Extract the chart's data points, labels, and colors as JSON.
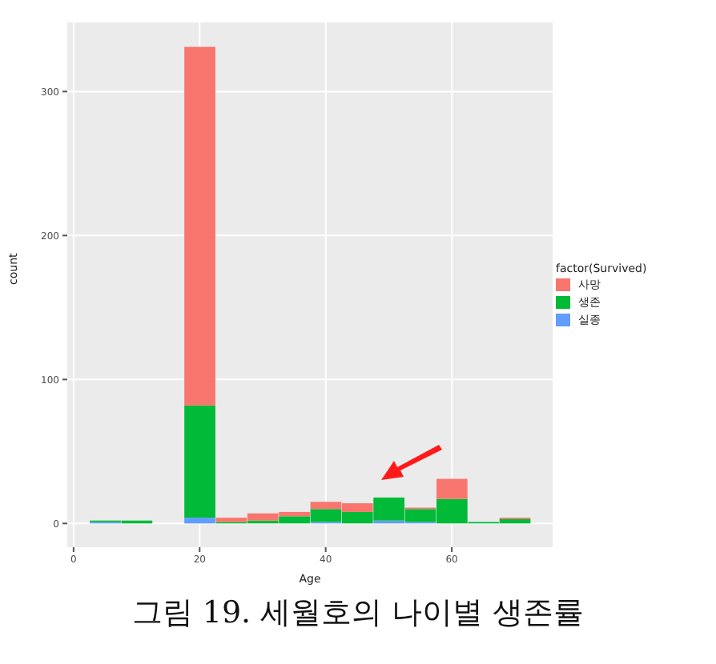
{
  "chart_data": {
    "type": "bar",
    "xlabel": "Age",
    "ylabel": "count",
    "legend_title": "factor(Survived)",
    "legend": "right",
    "grid": true,
    "stacked": true,
    "x": [
      5,
      10,
      15,
      20,
      25,
      30,
      35,
      40,
      45,
      50,
      55,
      60,
      65,
      70
    ],
    "series": [
      {
        "name": "실종",
        "color": "#619cff",
        "values": [
          1,
          0,
          0,
          4,
          0,
          0,
          0,
          1,
          0,
          2,
          1,
          0,
          0,
          0
        ]
      },
      {
        "name": "생존",
        "color": "#00ba38",
        "values": [
          1,
          2,
          0,
          78,
          1,
          2,
          5,
          9,
          8,
          16,
          9,
          17,
          1,
          3
        ]
      },
      {
        "name": "사망",
        "color": "#f8766d",
        "values": [
          0,
          0,
          0,
          249,
          3,
          5,
          3,
          5,
          6,
          0,
          1,
          14,
          0,
          1
        ]
      }
    ],
    "xlim": [
      -1,
      76
    ],
    "xticks": [
      0,
      20,
      40,
      60
    ],
    "ylim": [
      -16.5,
      348
    ],
    "yticks": [
      0,
      100,
      200,
      300
    ],
    "annotations": [
      "그림 19. 세월호의 나이별 생존률"
    ]
  }
}
